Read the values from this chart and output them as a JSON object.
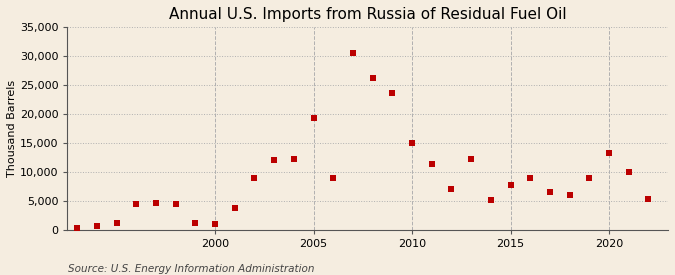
{
  "title": "Annual U.S. Imports from Russia of Residual Fuel Oil",
  "ylabel": "Thousand Barrels",
  "source": "Source: U.S. Energy Information Administration",
  "background_color": "#f5ede0",
  "plot_bg_color": "#f5ede0",
  "years": [
    1993,
    1994,
    1995,
    1996,
    1997,
    1998,
    1999,
    2000,
    2001,
    2002,
    2003,
    2004,
    2005,
    2006,
    2007,
    2008,
    2009,
    2010,
    2011,
    2012,
    2013,
    2014,
    2015,
    2016,
    2017,
    2018,
    2019,
    2020,
    2021,
    2022
  ],
  "values": [
    300,
    600,
    1200,
    4400,
    4600,
    4400,
    1200,
    1000,
    3700,
    9000,
    12100,
    12200,
    19300,
    9000,
    30500,
    26300,
    23700,
    15000,
    11400,
    7100,
    12200,
    5100,
    7700,
    9000,
    6600,
    6000,
    9000,
    13200,
    10000,
    5300
  ],
  "marker_color": "#bb0000",
  "marker_size": 16,
  "ylim": [
    0,
    35000
  ],
  "yticks": [
    0,
    5000,
    10000,
    15000,
    20000,
    25000,
    30000,
    35000
  ],
  "xlim": [
    1992.5,
    2023
  ],
  "xticks": [
    2000,
    2005,
    2010,
    2015,
    2020
  ],
  "grid_color": "#b0b0b0",
  "title_fontsize": 11,
  "label_fontsize": 8,
  "tick_fontsize": 8,
  "source_fontsize": 7.5
}
